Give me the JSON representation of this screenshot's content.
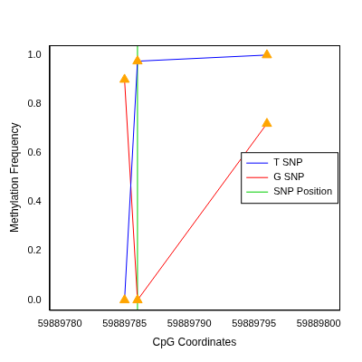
{
  "chart_data": {
    "type": "line",
    "x_label": "CpG Coordinates",
    "y_label": "Methylation Frequency",
    "x": [
      59889785,
      59889786,
      59889796
    ],
    "series": [
      {
        "name": "T SNP",
        "color": "#0000ff",
        "values": [
          0.0,
          0.975,
          1.0
        ],
        "marker": "triangle"
      },
      {
        "name": "G SNP",
        "color": "#ff0000",
        "values": [
          0.9,
          0.0,
          0.72
        ],
        "marker": "triangle"
      }
    ],
    "snp_position": {
      "name": "SNP Position",
      "color": "#00cd00",
      "x": 59889786
    },
    "xlim": [
      59889779.2,
      59889801.6
    ],
    "xticks": [
      59889780,
      59889785,
      59889790,
      59889795,
      59889800
    ],
    "ylim": [
      -0.04,
      1.04
    ],
    "yticks": [
      {
        "value": 0,
        "label": "0.0"
      },
      {
        "value": 0.2,
        "label": "0.2"
      },
      {
        "value": 0.4,
        "label": "0.4"
      },
      {
        "value": 0.6,
        "label": "0.6"
      },
      {
        "value": 0.8,
        "label": "0.8"
      },
      {
        "value": 1,
        "label": "1.0"
      }
    ],
    "grid": false,
    "legend": "right"
  }
}
